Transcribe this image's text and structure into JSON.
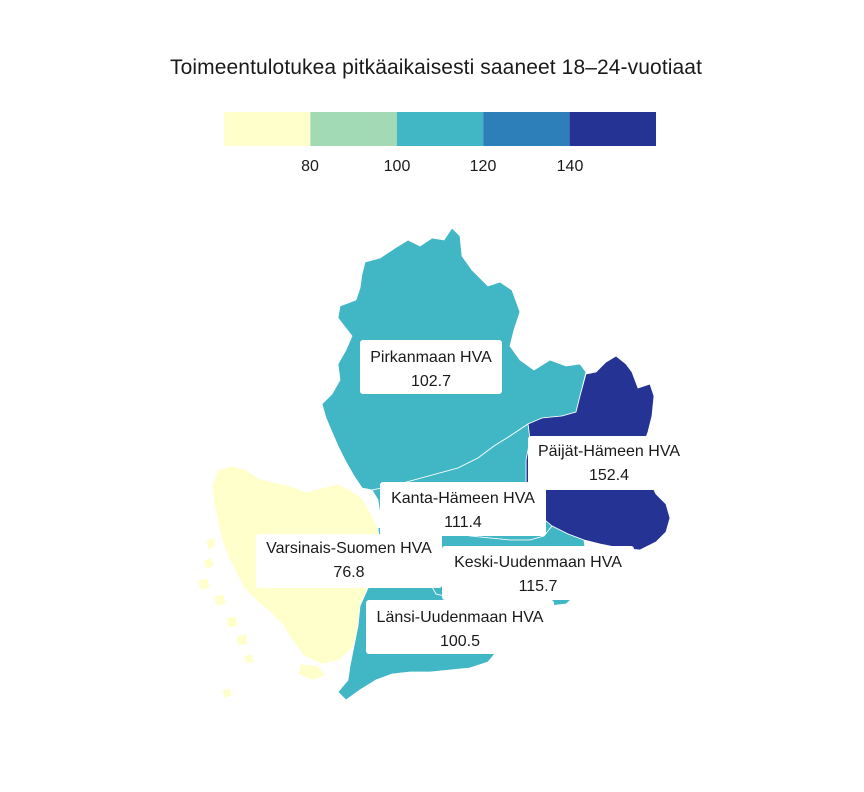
{
  "title": "Toimeentulotukea pitkäaikaisesti saaneet 18–24-vuotiaat",
  "legend": {
    "bins": [
      {
        "color": "#ffffcc"
      },
      {
        "color": "#a1dab4"
      },
      {
        "color": "#41b6c4"
      },
      {
        "color": "#2c7fb8"
      },
      {
        "color": "#253494"
      }
    ],
    "ticks": [
      "80",
      "100",
      "120",
      "140"
    ]
  },
  "regions": [
    {
      "id": "pirkanmaa",
      "name": "Pirkanmaan HVA",
      "value": "102.7",
      "color": "#41b6c4"
    },
    {
      "id": "paijat-hame",
      "name": "Päijät-Hämeen HVA",
      "value": "152.4",
      "color": "#253494"
    },
    {
      "id": "kanta-hame",
      "name": "Kanta-Hämeen HVA",
      "value": "111.4",
      "color": "#41b6c4"
    },
    {
      "id": "varsinais-suomi",
      "name": "Varsinais-Suomen HVA",
      "value": "76.8",
      "color": "#ffffcc"
    },
    {
      "id": "keski-uusimaa",
      "name": "Keski-Uudenmaan HVA",
      "value": "115.7",
      "color": "#41b6c4"
    },
    {
      "id": "lansi-uusimaa",
      "name": "Länsi-Uudenmaan HVA",
      "value": "100.5",
      "color": "#41b6c4"
    }
  ]
}
